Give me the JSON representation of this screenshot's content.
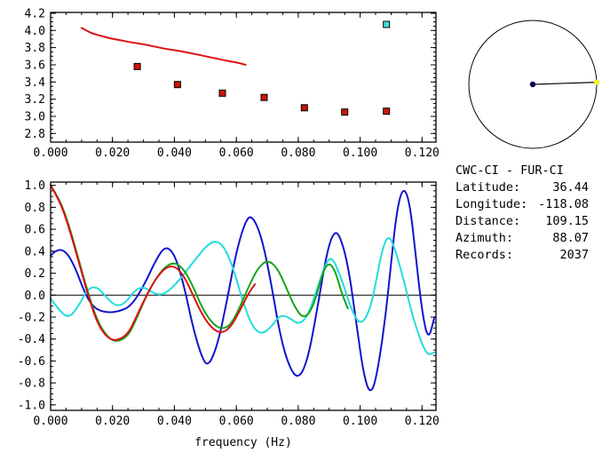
{
  "window": {
    "background": "#ffffff"
  },
  "info_panel": {
    "title": "CWC-CI - FUR-CI",
    "rows": [
      {
        "label": "Latitude:",
        "value": "36.44"
      },
      {
        "label": "Longitude:",
        "value": "-118.08"
      },
      {
        "label": "Distance:",
        "value": "109.15"
      },
      {
        "label": "Azimuth:",
        "value": "88.07"
      },
      {
        "label": "Records:",
        "value": "2037"
      }
    ]
  },
  "great_circle": {
    "azimuth_deg": 88.07,
    "ring_color": "#000000",
    "center_dot_color": "#00004d",
    "end_dot_color": "#ffff00"
  },
  "chart_data": [
    {
      "id": "dispersion-plot",
      "type": "scatter",
      "title": "",
      "xlabel": "",
      "ylabel": "",
      "xlim": [
        0,
        0.1245
      ],
      "ylim": [
        2.7,
        4.21
      ],
      "grid": false,
      "xtick_minor": 0.005,
      "ytick_minor": 0.05,
      "xtick_labels": [
        "0.000",
        "0.020",
        "0.040",
        "0.060",
        "0.080",
        "0.100",
        "0.120"
      ],
      "ytick_labels": [
        "2.8",
        "3.0",
        "3.2",
        "3.4",
        "3.6",
        "3.8",
        "4.0",
        "4.2"
      ],
      "series": [
        {
          "name": "theoretical-dispersion-curve",
          "kind": "line",
          "color": "#dd1010",
          "width": 2,
          "points": [
            [
              0.01,
              4.03
            ],
            [
              0.012,
              3.99
            ],
            [
              0.014,
              3.96
            ],
            [
              0.016,
              3.94
            ],
            [
              0.019,
              3.91
            ],
            [
              0.022,
              3.89
            ],
            [
              0.026,
              3.86
            ],
            [
              0.03,
              3.84
            ],
            [
              0.034,
              3.81
            ],
            [
              0.038,
              3.78
            ],
            [
              0.042,
              3.76
            ],
            [
              0.046,
              3.73
            ],
            [
              0.05,
              3.7
            ],
            [
              0.054,
              3.67
            ],
            [
              0.058,
              3.64
            ],
            [
              0.061,
              3.62
            ],
            [
              0.063,
              3.6
            ]
          ]
        },
        {
          "name": "group-velocity-pick",
          "kind": "square",
          "color": "#cc1505",
          "size": 7,
          "points": [
            [
              0.028,
              3.58
            ],
            [
              0.041,
              3.37
            ],
            [
              0.0555,
              3.27
            ],
            [
              0.069,
              3.22
            ],
            [
              0.082,
              3.1
            ],
            [
              0.095,
              3.05
            ],
            [
              0.1085,
              3.06
            ]
          ]
        },
        {
          "name": "selected-pick",
          "kind": "square",
          "color": "#45d9d9",
          "size": 7,
          "points": [
            [
              0.1085,
              4.07
            ]
          ]
        }
      ]
    },
    {
      "id": "spectra-plot",
      "type": "line",
      "title": "",
      "xlabel": "frequency (Hz)",
      "ylabel": "",
      "xlim": [
        0,
        0.1245
      ],
      "ylim": [
        -1.05,
        1.03
      ],
      "grid": false,
      "zero_line": true,
      "xtick_minor": 0.005,
      "ytick_minor": 0.05,
      "xtick_labels": [
        "0.000",
        "0.020",
        "0.040",
        "0.060",
        "0.080",
        "0.100",
        "0.120"
      ],
      "ytick_labels": [
        "-1.0",
        "-0.8",
        "-0.6",
        "-0.4",
        "-0.2",
        "0.0",
        "0.2",
        "0.4",
        "0.6",
        "0.8",
        "1.0"
      ],
      "series": [
        {
          "name": "stack-spectrum-blue",
          "kind": "line",
          "color": "#1212cc",
          "width": 2,
          "points": [
            [
              0,
              0.36
            ],
            [
              0.002,
              0.42
            ],
            [
              0.005,
              0.4
            ],
            [
              0.008,
              0.25
            ],
            [
              0.011,
              0.02
            ],
            [
              0.014,
              -0.12
            ],
            [
              0.018,
              -0.16
            ],
            [
              0.022,
              -0.15
            ],
            [
              0.026,
              -0.1
            ],
            [
              0.03,
              0.08
            ],
            [
              0.034,
              0.32
            ],
            [
              0.037,
              0.45
            ],
            [
              0.04,
              0.38
            ],
            [
              0.043,
              0.1
            ],
            [
              0.046,
              -0.3
            ],
            [
              0.049,
              -0.58
            ],
            [
              0.051,
              -0.65
            ],
            [
              0.054,
              -0.45
            ],
            [
              0.057,
              -0.05
            ],
            [
              0.06,
              0.4
            ],
            [
              0.063,
              0.68
            ],
            [
              0.065,
              0.73
            ],
            [
              0.068,
              0.55
            ],
            [
              0.071,
              0.15
            ],
            [
              0.074,
              -0.35
            ],
            [
              0.077,
              -0.65
            ],
            [
              0.08,
              -0.77
            ],
            [
              0.083,
              -0.6
            ],
            [
              0.086,
              -0.15
            ],
            [
              0.089,
              0.35
            ],
            [
              0.091,
              0.55
            ],
            [
              0.093,
              0.58
            ],
            [
              0.096,
              0.3
            ],
            [
              0.099,
              -0.3
            ],
            [
              0.101,
              -0.7
            ],
            [
              0.103,
              -0.9
            ],
            [
              0.105,
              -0.8
            ],
            [
              0.108,
              -0.25
            ],
            [
              0.11,
              0.3
            ],
            [
              0.112,
              0.8
            ],
            [
              0.114,
              0.99
            ],
            [
              0.116,
              0.85
            ],
            [
              0.118,
              0.35
            ],
            [
              0.12,
              -0.15
            ],
            [
              0.122,
              -0.42
            ],
            [
              0.124,
              -0.2
            ]
          ]
        },
        {
          "name": "stack-spectrum-cyan",
          "kind": "line",
          "color": "#22dddd",
          "width": 2,
          "points": [
            [
              0,
              -0.03
            ],
            [
              0.003,
              -0.15
            ],
            [
              0.006,
              -0.21
            ],
            [
              0.009,
              -0.1
            ],
            [
              0.012,
              0.06
            ],
            [
              0.015,
              0.08
            ],
            [
              0.018,
              -0.02
            ],
            [
              0.021,
              -0.1
            ],
            [
              0.024,
              -0.08
            ],
            [
              0.027,
              0.04
            ],
            [
              0.03,
              0.08
            ],
            [
              0.033,
              0.02
            ],
            [
              0.036,
              0.0
            ],
            [
              0.039,
              0.06
            ],
            [
              0.042,
              0.15
            ],
            [
              0.046,
              0.3
            ],
            [
              0.05,
              0.44
            ],
            [
              0.053,
              0.5
            ],
            [
              0.056,
              0.45
            ],
            [
              0.059,
              0.25
            ],
            [
              0.062,
              -0.05
            ],
            [
              0.065,
              -0.28
            ],
            [
              0.068,
              -0.36
            ],
            [
              0.071,
              -0.3
            ],
            [
              0.074,
              -0.18
            ],
            [
              0.077,
              -0.2
            ],
            [
              0.08,
              -0.27
            ],
            [
              0.083,
              -0.2
            ],
            [
              0.086,
              0.05
            ],
            [
              0.089,
              0.3
            ],
            [
              0.091,
              0.35
            ],
            [
              0.094,
              0.15
            ],
            [
              0.097,
              -0.12
            ],
            [
              0.1,
              -0.28
            ],
            [
              0.103,
              -0.15
            ],
            [
              0.105,
              0.1
            ],
            [
              0.107,
              0.4
            ],
            [
              0.109,
              0.55
            ],
            [
              0.111,
              0.45
            ],
            [
              0.114,
              0.15
            ],
            [
              0.117,
              -0.2
            ],
            [
              0.12,
              -0.45
            ],
            [
              0.122,
              -0.55
            ],
            [
              0.124,
              -0.52
            ]
          ]
        },
        {
          "name": "fitted-spectrum-green",
          "kind": "line",
          "color": "#17a417",
          "width": 2,
          "points": [
            [
              0,
              1.0
            ],
            [
              0.003,
              0.87
            ],
            [
              0.006,
              0.63
            ],
            [
              0.009,
              0.33
            ],
            [
              0.012,
              0.03
            ],
            [
              0.015,
              -0.23
            ],
            [
              0.018,
              -0.37
            ],
            [
              0.021,
              -0.43
            ],
            [
              0.025,
              -0.38
            ],
            [
              0.028,
              -0.2
            ],
            [
              0.031,
              0.0
            ],
            [
              0.034,
              0.15
            ],
            [
              0.037,
              0.26
            ],
            [
              0.04,
              0.3
            ],
            [
              0.043,
              0.24
            ],
            [
              0.046,
              0.08
            ],
            [
              0.049,
              -0.12
            ],
            [
              0.052,
              -0.25
            ],
            [
              0.055,
              -0.31
            ],
            [
              0.058,
              -0.28
            ],
            [
              0.061,
              -0.12
            ],
            [
              0.064,
              0.08
            ],
            [
              0.067,
              0.25
            ],
            [
              0.07,
              0.32
            ],
            [
              0.073,
              0.26
            ],
            [
              0.076,
              0.08
            ],
            [
              0.079,
              -0.12
            ],
            [
              0.082,
              -0.22
            ],
            [
              0.085,
              -0.1
            ],
            [
              0.088,
              0.22
            ],
            [
              0.09,
              0.3
            ],
            [
              0.092,
              0.22
            ],
            [
              0.094,
              0.02
            ],
            [
              0.096,
              -0.12
            ]
          ]
        },
        {
          "name": "fitted-spectrum-red",
          "kind": "line",
          "color": "#dd1010",
          "width": 2,
          "points": [
            [
              0,
              1.0
            ],
            [
              0.003,
              0.86
            ],
            [
              0.006,
              0.61
            ],
            [
              0.009,
              0.31
            ],
            [
              0.012,
              0.01
            ],
            [
              0.015,
              -0.25
            ],
            [
              0.018,
              -0.38
            ],
            [
              0.021,
              -0.42
            ],
            [
              0.025,
              -0.36
            ],
            [
              0.028,
              -0.18
            ],
            [
              0.031,
              0.0
            ],
            [
              0.034,
              0.15
            ],
            [
              0.037,
              0.25
            ],
            [
              0.04,
              0.27
            ],
            [
              0.043,
              0.18
            ],
            [
              0.046,
              0.0
            ],
            [
              0.049,
              -0.18
            ],
            [
              0.052,
              -0.3
            ],
            [
              0.055,
              -0.35
            ],
            [
              0.058,
              -0.3
            ],
            [
              0.061,
              -0.15
            ],
            [
              0.064,
              0.02
            ],
            [
              0.066,
              0.1
            ]
          ]
        }
      ]
    }
  ]
}
